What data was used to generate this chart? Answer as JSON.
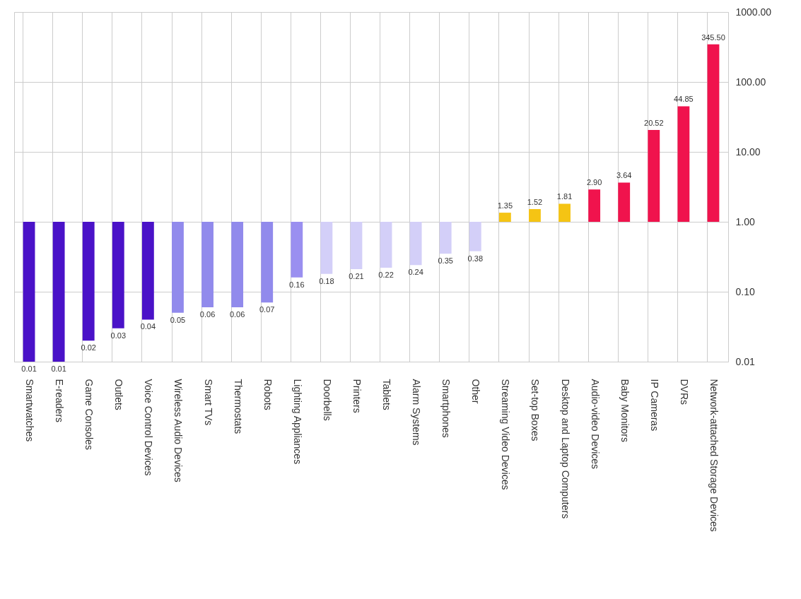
{
  "chart_data": {
    "type": "bar",
    "log": true,
    "grid": true,
    "categories": [
      "Smartwatches",
      "E-readers",
      "Game Consoles",
      "Outlets",
      "Voice Control Devices",
      "Wireless Audio Devices",
      "Smart TVs",
      "Thermostats",
      "Robots",
      "Lighting Appliances",
      "Doorbells",
      "Printers",
      "Tablets",
      "Alarm Systems",
      "Smartphones",
      "Other",
      "Streaming Video Devices",
      "Set-top Boxes",
      "Desktop and Laptop Computers",
      "Audio-video Devices",
      "Baby Monitors",
      "IP Cameras",
      "DVRs",
      "Network-attached Storage Devices"
    ],
    "base": [
      1,
      1,
      1,
      1,
      1,
      1,
      1,
      1,
      1,
      1,
      1,
      1,
      1,
      1,
      1,
      1,
      1,
      1,
      1,
      1,
      1,
      1,
      1,
      1
    ],
    "values": [
      -0.99,
      -0.99,
      -0.98,
      -0.97,
      -0.96,
      -0.95,
      -0.94,
      -0.94,
      -0.93,
      -0.84,
      -0.82,
      -0.79,
      -0.78,
      -0.76,
      -0.65,
      -0.62,
      0.35,
      0.52,
      0.81,
      1.9,
      2.64,
      19.52,
      43.85,
      344.5
    ],
    "value_labels": [
      "0.01",
      "0.01",
      "0.02",
      "0.03",
      "0.04",
      "0.05",
      "0.06",
      "0.06",
      "0.07",
      "0.16",
      "0.18",
      "0.21",
      "0.22",
      "0.24",
      "0.35",
      "0.38",
      "1.35",
      "1.52",
      "1.81",
      "2.90",
      "3.64",
      "20.52",
      "44.85",
      "345.50"
    ],
    "colors": [
      "#4a12c8",
      "#4a12c8",
      "#4a12c8",
      "#4a12c8",
      "#4a12c8",
      "#918aec",
      "#918aec",
      "#918aec",
      "#918aec",
      "#9a8ff0",
      "#d3cff8",
      "#d3cff8",
      "#d3cff8",
      "#d3cff8",
      "#d3cff8",
      "#d3cff8",
      "#f5c414",
      "#f5c414",
      "#f5c414",
      "#f0134d",
      "#f0134d",
      "#f0134d",
      "#f0134d",
      "#f0134d"
    ],
    "ylim": [
      0.01,
      1000
    ],
    "yticks": [
      {
        "value": 0.01,
        "label": "0.01"
      },
      {
        "value": 0.1,
        "label": "0.10"
      },
      {
        "value": 1,
        "label": "1.00"
      },
      {
        "value": 10,
        "label": "10.00"
      },
      {
        "value": 100,
        "label": "100.00"
      },
      {
        "value": 1000,
        "label": "1000.00"
      }
    ]
  }
}
